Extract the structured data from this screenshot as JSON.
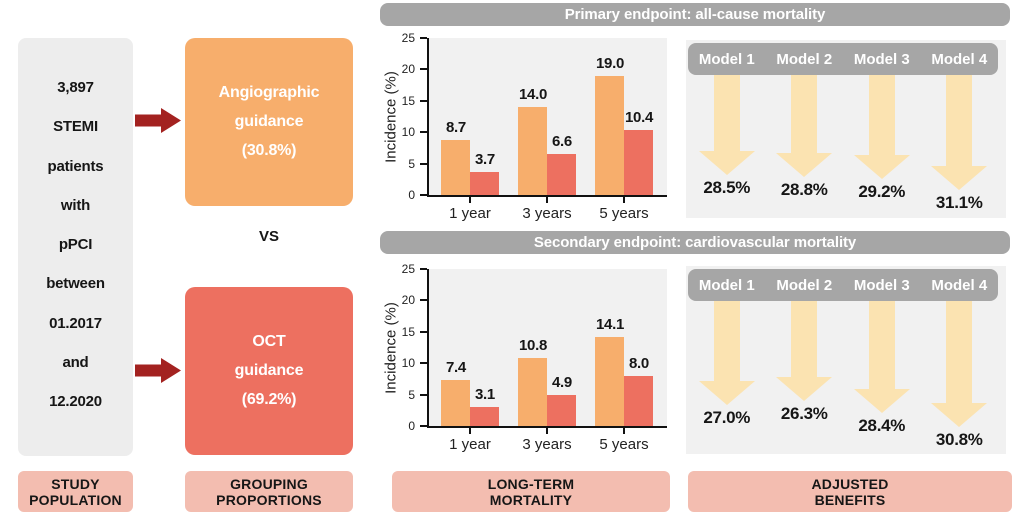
{
  "palette": {
    "orange": "#F7AE6C",
    "salmon": "#ED7060",
    "dark_red_arrow": "#A32220",
    "study_box_gray": "#EDEDED",
    "pink_label": "#F3BDB0",
    "header_gray": "#A6A6A6",
    "panel_bg": "#F1F1F1",
    "benefit_arrow_cream": "#FBE3B1"
  },
  "study_population": {
    "box_lines": [
      "3,897",
      "STEMI",
      "patients",
      "with",
      "pPCI",
      "between",
      "01.2017",
      "and",
      "12.2020"
    ],
    "footer_label": [
      "STUDY",
      "POPULATION"
    ]
  },
  "grouping": {
    "top_box_lines": [
      "Angiographic",
      "guidance",
      "(30.8%)"
    ],
    "vs_label": "VS",
    "bottom_box_lines": [
      "OCT",
      "guidance",
      "(69.2%)"
    ],
    "footer_label": [
      "GROUPING",
      "PROPORTIONS"
    ]
  },
  "section_headers": {
    "primary": "Primary endpoint: all-cause mortality",
    "secondary": "Secondary endpoint: cardiovascular mortality"
  },
  "long_term_mortality": {
    "footer_label": [
      "LONG-TERM",
      "MORTALITY"
    ]
  },
  "adjusted_benefits": {
    "footer_label": [
      "ADJUSTED",
      "BENEFITS"
    ],
    "panels": [
      {
        "endpoint": "Primary endpoint: all-cause mortality",
        "models": [
          "Model 1",
          "Model 2",
          "Model 3",
          "Model 4"
        ],
        "values": [
          28.5,
          28.8,
          29.2,
          31.1
        ]
      },
      {
        "endpoint": "Secondary endpoint: cardiovascular mortality",
        "models": [
          "Model 1",
          "Model 2",
          "Model 3",
          "Model 4"
        ],
        "values": [
          27.0,
          26.3,
          28.4,
          30.8
        ]
      }
    ]
  },
  "chart_data": [
    {
      "type": "bar",
      "title": "Primary endpoint: all-cause mortality",
      "categories": [
        "1 year",
        "3 years",
        "5 years"
      ],
      "series": [
        {
          "name": "Angiographic guidance",
          "color": "#F7AE6C",
          "values": [
            8.7,
            14.0,
            19.0
          ]
        },
        {
          "name": "OCT guidance",
          "color": "#ED7060",
          "values": [
            3.7,
            6.6,
            10.4
          ]
        }
      ],
      "xlabel": "",
      "ylabel": "Incidence (%)",
      "ylim": [
        0,
        25
      ],
      "yticks": [
        0,
        5,
        10,
        15,
        20,
        25
      ],
      "grid": false,
      "legend": "none",
      "value_labels": true
    },
    {
      "type": "bar",
      "title": "Secondary endpoint: cardiovascular mortality",
      "categories": [
        "1 year",
        "3 years",
        "5 years"
      ],
      "series": [
        {
          "name": "Angiographic guidance",
          "color": "#F7AE6C",
          "values": [
            7.4,
            10.8,
            14.1
          ]
        },
        {
          "name": "OCT guidance",
          "color": "#ED7060",
          "values": [
            3.1,
            4.9,
            8.0
          ]
        }
      ],
      "xlabel": "",
      "ylabel": "Incidence (%)",
      "ylim": [
        0,
        25
      ],
      "yticks": [
        0,
        5,
        10,
        15,
        20,
        25
      ],
      "grid": false,
      "legend": "none",
      "value_labels": true
    }
  ]
}
